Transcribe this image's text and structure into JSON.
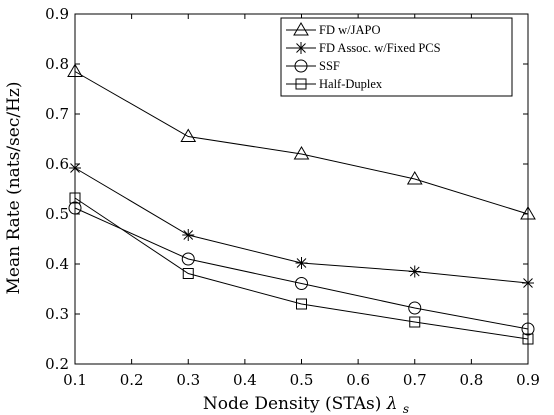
{
  "chart_data": {
    "type": "line",
    "xlabel": "Node Density (STAs) λs",
    "xlabel_main": "Node Density (STAs) ",
    "xlabel_symbol": "λ",
    "xlabel_subscript": "s",
    "ylabel": "Mean Rate (nats/sec/Hz)",
    "xlim": [
      0.1,
      0.9
    ],
    "ylim": [
      0.2,
      0.9
    ],
    "xticks": [
      0.1,
      0.2,
      0.3,
      0.4,
      0.5,
      0.6,
      0.7,
      0.8,
      0.9
    ],
    "yticks": [
      0.2,
      0.3,
      0.4,
      0.5,
      0.6,
      0.7,
      0.8,
      0.9
    ],
    "xtick_labels": [
      "0.1",
      "0.2",
      "0.3",
      "0.4",
      "0.5",
      "0.6",
      "0.7",
      "0.8",
      "0.9"
    ],
    "ytick_labels": [
      "0.2",
      "0.3",
      "0.4",
      "0.5",
      "0.6",
      "0.7",
      "0.8",
      "0.9"
    ],
    "grid": false,
    "legend_position": "top-right",
    "x": [
      0.1,
      0.3,
      0.5,
      0.7,
      0.9
    ],
    "series": [
      {
        "name": "FD w/JAPO",
        "marker": "triangle",
        "values": [
          0.785,
          0.655,
          0.62,
          0.57,
          0.5
        ]
      },
      {
        "name": "FD Assoc. w/Fixed PCS",
        "marker": "asterisk",
        "values": [
          0.592,
          0.458,
          0.402,
          0.385,
          0.362
        ]
      },
      {
        "name": "SSF",
        "marker": "circle",
        "values": [
          0.512,
          0.41,
          0.361,
          0.312,
          0.27
        ]
      },
      {
        "name": "Half-Duplex",
        "marker": "square",
        "values": [
          0.532,
          0.381,
          0.32,
          0.284,
          0.25
        ]
      }
    ]
  }
}
